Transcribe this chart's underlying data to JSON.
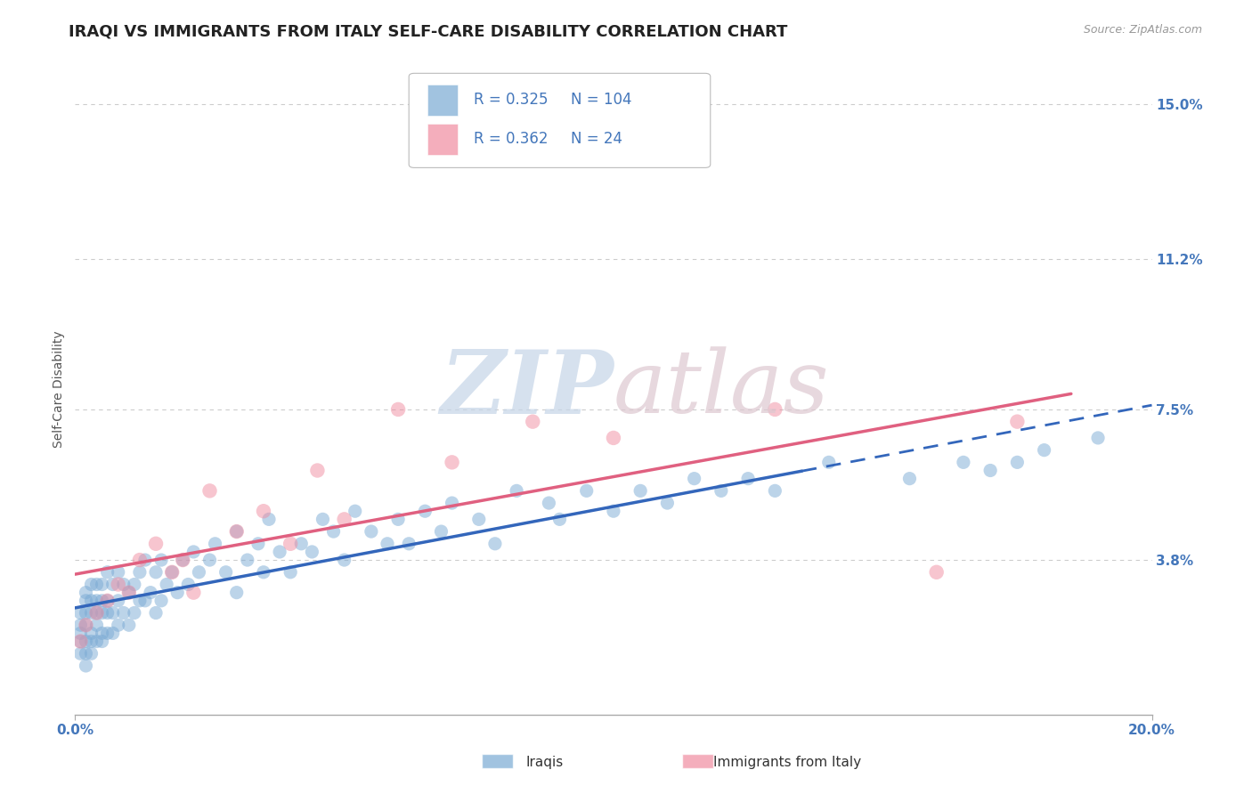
{
  "title": "IRAQI VS IMMIGRANTS FROM ITALY SELF-CARE DISABILITY CORRELATION CHART",
  "source_text": "Source: ZipAtlas.com",
  "ylabel": "Self-Care Disability",
  "xlim": [
    0.0,
    0.2
  ],
  "ylim": [
    0.0,
    0.16
  ],
  "ytick_positions": [
    0.038,
    0.075,
    0.112,
    0.15
  ],
  "ytick_labels": [
    "3.8%",
    "7.5%",
    "11.2%",
    "15.0%"
  ],
  "grid_color": "#cccccc",
  "background_color": "#ffffff",
  "iraqis_color": "#7aaad4",
  "immigrants_color": "#f08ca0",
  "iraqis_R": 0.325,
  "iraqis_N": 104,
  "immigrants_R": 0.362,
  "immigrants_N": 24,
  "legend_label_iraqis": "Iraqis",
  "legend_label_immigrants": "Immigrants from Italy",
  "title_fontsize": 13,
  "axis_label_fontsize": 10,
  "tick_fontsize": 11,
  "tick_color": "#4477bb",
  "blue_line_color": "#3366bb",
  "pink_line_color": "#e06080",
  "iraqis_x": [
    0.001,
    0.001,
    0.001,
    0.001,
    0.001,
    0.002,
    0.002,
    0.002,
    0.002,
    0.002,
    0.002,
    0.002,
    0.003,
    0.003,
    0.003,
    0.003,
    0.003,
    0.003,
    0.004,
    0.004,
    0.004,
    0.004,
    0.004,
    0.005,
    0.005,
    0.005,
    0.005,
    0.005,
    0.006,
    0.006,
    0.006,
    0.006,
    0.007,
    0.007,
    0.007,
    0.008,
    0.008,
    0.008,
    0.009,
    0.009,
    0.01,
    0.01,
    0.011,
    0.011,
    0.012,
    0.012,
    0.013,
    0.013,
    0.014,
    0.015,
    0.015,
    0.016,
    0.016,
    0.017,
    0.018,
    0.019,
    0.02,
    0.021,
    0.022,
    0.023,
    0.025,
    0.026,
    0.028,
    0.03,
    0.03,
    0.032,
    0.034,
    0.035,
    0.036,
    0.038,
    0.04,
    0.042,
    0.044,
    0.046,
    0.048,
    0.05,
    0.052,
    0.055,
    0.058,
    0.06,
    0.062,
    0.065,
    0.068,
    0.07,
    0.075,
    0.078,
    0.082,
    0.088,
    0.09,
    0.095,
    0.1,
    0.105,
    0.11,
    0.115,
    0.12,
    0.125,
    0.13,
    0.14,
    0.155,
    0.165,
    0.17,
    0.175,
    0.18,
    0.19
  ],
  "iraqis_y": [
    0.015,
    0.018,
    0.02,
    0.022,
    0.025,
    0.012,
    0.015,
    0.018,
    0.022,
    0.025,
    0.028,
    0.03,
    0.015,
    0.018,
    0.02,
    0.025,
    0.028,
    0.032,
    0.018,
    0.022,
    0.025,
    0.028,
    0.032,
    0.018,
    0.02,
    0.025,
    0.028,
    0.032,
    0.02,
    0.025,
    0.028,
    0.035,
    0.02,
    0.025,
    0.032,
    0.022,
    0.028,
    0.035,
    0.025,
    0.032,
    0.022,
    0.03,
    0.025,
    0.032,
    0.028,
    0.035,
    0.028,
    0.038,
    0.03,
    0.025,
    0.035,
    0.028,
    0.038,
    0.032,
    0.035,
    0.03,
    0.038,
    0.032,
    0.04,
    0.035,
    0.038,
    0.042,
    0.035,
    0.03,
    0.045,
    0.038,
    0.042,
    0.035,
    0.048,
    0.04,
    0.035,
    0.042,
    0.04,
    0.048,
    0.045,
    0.038,
    0.05,
    0.045,
    0.042,
    0.048,
    0.042,
    0.05,
    0.045,
    0.052,
    0.048,
    0.042,
    0.055,
    0.052,
    0.048,
    0.055,
    0.05,
    0.055,
    0.052,
    0.058,
    0.055,
    0.058,
    0.055,
    0.062,
    0.058,
    0.062,
    0.06,
    0.062,
    0.065,
    0.068
  ],
  "immigrants_x": [
    0.001,
    0.002,
    0.004,
    0.006,
    0.008,
    0.01,
    0.012,
    0.015,
    0.018,
    0.02,
    0.022,
    0.025,
    0.03,
    0.035,
    0.04,
    0.045,
    0.05,
    0.06,
    0.07,
    0.085,
    0.1,
    0.13,
    0.16,
    0.175
  ],
  "immigrants_y": [
    0.018,
    0.022,
    0.025,
    0.028,
    0.032,
    0.03,
    0.038,
    0.042,
    0.035,
    0.038,
    0.03,
    0.055,
    0.045,
    0.05,
    0.042,
    0.06,
    0.048,
    0.075,
    0.062,
    0.072,
    0.068,
    0.075,
    0.035,
    0.072
  ]
}
